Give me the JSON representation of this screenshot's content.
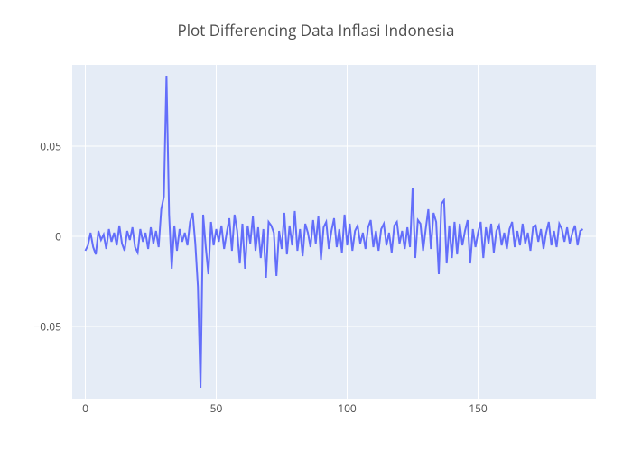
{
  "chart": {
    "type": "line",
    "title": "Plot Differencing Data Inflasi Indonesia",
    "title_fontsize": 17,
    "title_color": "#4d4d4d",
    "background_color": "#ffffff",
    "plot_bg_color": "#e5ecf6",
    "grid_color": "#ffffff",
    "line_color": "#636efa",
    "line_width": 2,
    "tick_fontsize": 12,
    "tick_color": "#4d4d4d",
    "xlim": [
      -5,
      195
    ],
    "ylim": [
      -0.09,
      0.095
    ],
    "x_ticks": [
      0,
      50,
      100,
      150
    ],
    "y_ticks": [
      -0.05,
      0,
      0.05
    ],
    "y_tick_labels": [
      "−0.05",
      "0",
      "0.05"
    ],
    "x": [
      0,
      1,
      2,
      3,
      4,
      5,
      6,
      7,
      8,
      9,
      10,
      11,
      12,
      13,
      14,
      15,
      16,
      17,
      18,
      19,
      20,
      21,
      22,
      23,
      24,
      25,
      26,
      27,
      28,
      29,
      30,
      31,
      32,
      33,
      34,
      35,
      36,
      37,
      38,
      39,
      40,
      41,
      42,
      43,
      44,
      45,
      46,
      47,
      48,
      49,
      50,
      51,
      52,
      53,
      54,
      55,
      56,
      57,
      58,
      59,
      60,
      61,
      62,
      63,
      64,
      65,
      66,
      67,
      68,
      69,
      70,
      71,
      72,
      73,
      74,
      75,
      76,
      77,
      78,
      79,
      80,
      81,
      82,
      83,
      84,
      85,
      86,
      87,
      88,
      89,
      90,
      91,
      92,
      93,
      94,
      95,
      96,
      97,
      98,
      99,
      100,
      101,
      102,
      103,
      104,
      105,
      106,
      107,
      108,
      109,
      110,
      111,
      112,
      113,
      114,
      115,
      116,
      117,
      118,
      119,
      120,
      121,
      122,
      123,
      124,
      125,
      126,
      127,
      128,
      129,
      130,
      131,
      132,
      133,
      134,
      135,
      136,
      137,
      138,
      139,
      140,
      141,
      142,
      143,
      144,
      145,
      146,
      147,
      148,
      149,
      150,
      151,
      152,
      153,
      154,
      155,
      156,
      157,
      158,
      159,
      160,
      161,
      162,
      163,
      164,
      165,
      166,
      167,
      168,
      169,
      170,
      171,
      172,
      173,
      174,
      175,
      176,
      177,
      178,
      179,
      180,
      181,
      182,
      183,
      184,
      185,
      186,
      187,
      188,
      189,
      190
    ],
    "y": [
      -0.008,
      -0.005,
      0.002,
      -0.006,
      -0.01,
      0.003,
      -0.002,
      0.001,
      -0.007,
      0.004,
      -0.003,
      0.002,
      -0.005,
      0.006,
      -0.004,
      -0.008,
      0.003,
      -0.002,
      0.005,
      -0.006,
      -0.009,
      0.004,
      -0.003,
      0.002,
      -0.007,
      0.005,
      -0.004,
      0.003,
      -0.006,
      0.015,
      0.022,
      0.089,
      0.012,
      -0.018,
      0.006,
      -0.008,
      0.004,
      -0.003,
      0.002,
      -0.005,
      0.008,
      0.013,
      -0.004,
      -0.028,
      -0.084,
      0.012,
      -0.006,
      -0.021,
      0.008,
      -0.005,
      0.004,
      -0.003,
      0.006,
      -0.007,
      0.002,
      0.01,
      -0.008,
      0.012,
      0.003,
      -0.015,
      0.007,
      -0.018,
      0.006,
      -0.004,
      0.011,
      -0.008,
      0.005,
      -0.012,
      0.004,
      -0.023,
      0.008,
      0.006,
      0.002,
      -0.022,
      0.003,
      -0.007,
      0.013,
      -0.01,
      0.006,
      -0.005,
      0.014,
      -0.008,
      0.004,
      -0.011,
      0.007,
      0.002,
      -0.006,
      0.009,
      -0.004,
      0.011,
      -0.013,
      0.005,
      0.008,
      -0.007,
      0.003,
      0.01,
      -0.006,
      0.004,
      -0.009,
      0.012,
      -0.005,
      0.007,
      -0.008,
      0.003,
      0.006,
      -0.004,
      0.002,
      -0.007,
      0.005,
      0.009,
      -0.006,
      0.003,
      -0.008,
      0.004,
      0.007,
      -0.005,
      0.002,
      -0.009,
      0.006,
      0.008,
      -0.004,
      0.003,
      -0.007,
      0.005,
      -0.006,
      0.027,
      -0.012,
      0.009,
      0.007,
      -0.008,
      0.004,
      0.015,
      -0.007,
      0.013,
      0.008,
      -0.021,
      0.018,
      0.02,
      -0.015,
      0.006,
      -0.012,
      0.008,
      -0.01,
      0.007,
      -0.005,
      0.003,
      0.009,
      -0.015,
      0.004,
      -0.006,
      0.002,
      0.008,
      -0.012,
      0.005,
      -0.004,
      0.007,
      -0.009,
      0.003,
      0.006,
      -0.005,
      0.002,
      -0.007,
      0.004,
      0.008,
      -0.006,
      0.003,
      -0.005,
      0.007,
      -0.004,
      0.002,
      -0.008,
      0.005,
      0.006,
      -0.003,
      0.004,
      -0.007,
      0.002,
      0.008,
      -0.005,
      0.003,
      -0.006,
      0.007,
      0.004,
      -0.003,
      0.005,
      -0.004,
      0.002,
      0.006,
      -0.005,
      0.003,
      0.004
    ]
  }
}
